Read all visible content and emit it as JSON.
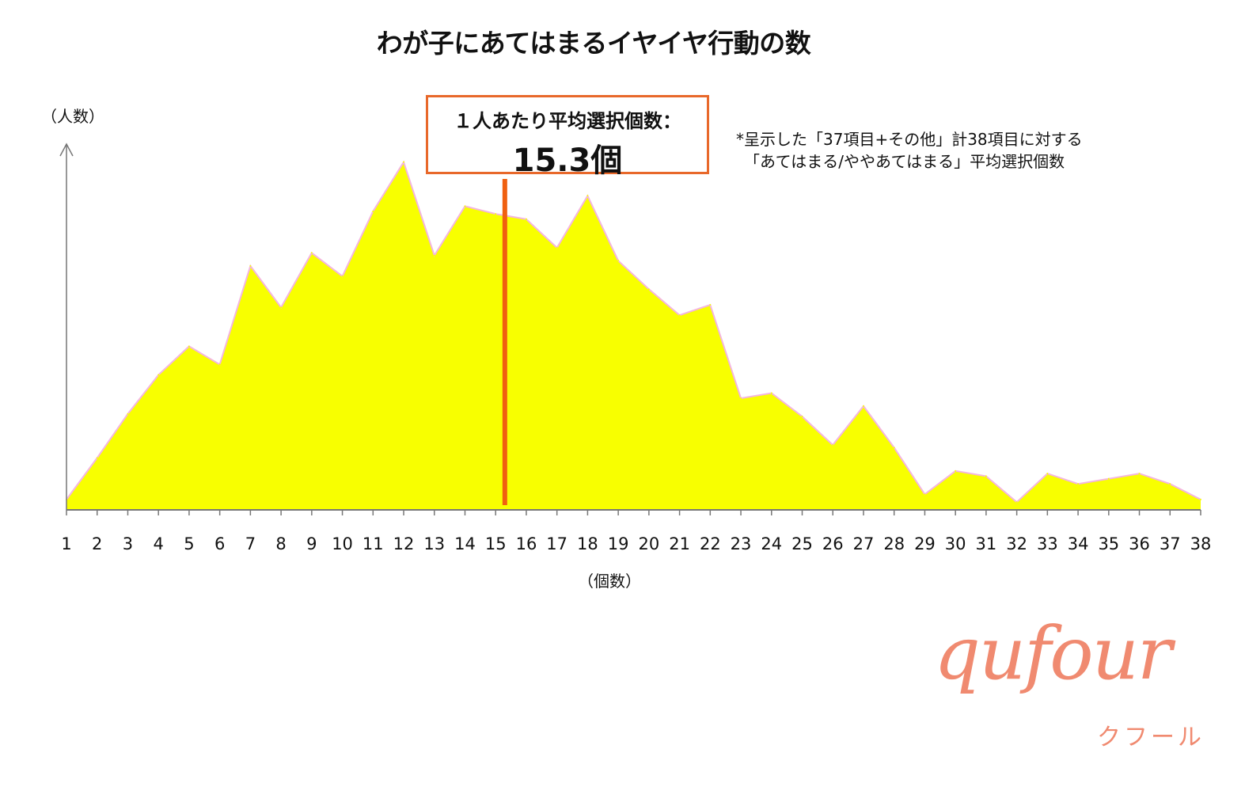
{
  "chart_data": {
    "type": "area",
    "title": "わが子にあてはまるイヤイヤ行動の数",
    "xlabel": "（個数）",
    "ylabel": "（人数）",
    "x": [
      1,
      2,
      3,
      4,
      5,
      6,
      7,
      8,
      9,
      10,
      11,
      12,
      13,
      14,
      15,
      16,
      17,
      18,
      19,
      20,
      21,
      22,
      23,
      24,
      25,
      26,
      27,
      28,
      29,
      30,
      31,
      32,
      33,
      34,
      35,
      36,
      37,
      38
    ],
    "values": [
      4,
      20,
      37,
      52,
      63,
      56,
      94,
      78,
      99,
      90,
      115,
      134,
      98,
      117,
      114,
      112,
      101,
      121,
      96,
      85,
      75,
      79,
      43,
      45,
      36,
      25,
      40,
      24,
      6,
      15,
      13,
      3,
      14,
      10,
      12,
      14,
      10,
      4
    ],
    "ylim": [
      0,
      140
    ],
    "y_ticks_shown": false,
    "grid": false,
    "legend": "none",
    "fill_color": "#f8ff00",
    "outline_color": "#f4b6e0",
    "axis_color": "#777777",
    "average": {
      "label": "１人あたり平均選択個数：",
      "value_text": "15.3個",
      "value": 15.3,
      "line_color": "#f06010",
      "box_color": "#e8682a"
    },
    "note_lines": [
      "*呈示した「37項目+その他」計38項目に対する",
      "「あてはまる/ややあてはまる」平均選択個数"
    ]
  },
  "brand": {
    "logo_text": "qufour",
    "sub_text": "クフール",
    "color": "#f08a70"
  }
}
